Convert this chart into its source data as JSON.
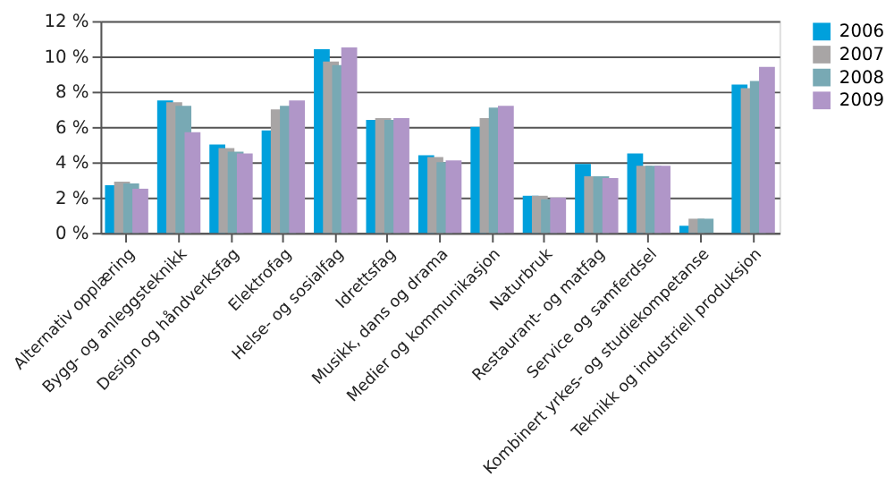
{
  "chart_data": {
    "type": "bar",
    "categories": [
      "Alternativ opplæring",
      "Bygg- og anleggsteknikk",
      "Design og håndverksfag",
      "Elektrofag",
      "Helse- og sosialfag",
      "Idrettsfag",
      "Musikk, dans og drama",
      "Medier og kommunikasjon",
      "Naturbruk",
      "Restaurant- og matfag",
      "Service og samferdsel",
      "Kombinert yrkes- og studiekompetanse",
      "Teknikk og industriell produksjon"
    ],
    "series": [
      {
        "name": "2006",
        "color": "#00a0dc",
        "values": [
          2.7,
          7.5,
          5.0,
          5.8,
          10.4,
          6.4,
          4.4,
          6.0,
          2.1,
          3.9,
          4.5,
          0.4,
          8.4
        ]
      },
      {
        "name": "2007",
        "color": "#a8a5a5",
        "values": [
          2.9,
          7.4,
          4.8,
          7.0,
          9.7,
          6.5,
          4.3,
          6.5,
          2.1,
          3.2,
          3.8,
          0.8,
          8.2
        ]
      },
      {
        "name": "2008",
        "color": "#78a9b4",
        "values": [
          2.8,
          7.2,
          4.6,
          7.2,
          9.5,
          6.4,
          4.0,
          7.1,
          1.9,
          3.2,
          3.8,
          0.8,
          8.6
        ]
      },
      {
        "name": "2009",
        "color": "#b096c8",
        "values": [
          2.5,
          5.7,
          4.5,
          7.5,
          10.5,
          6.5,
          4.1,
          7.2,
          2.0,
          3.1,
          3.8,
          null,
          9.4
        ]
      }
    ],
    "ylim": [
      0,
      12
    ],
    "yticks": [
      {
        "value": 0,
        "label": "0 %"
      },
      {
        "value": 2,
        "label": "2 %"
      },
      {
        "value": 4,
        "label": "4 %"
      },
      {
        "value": 6,
        "label": "6 %"
      },
      {
        "value": 8,
        "label": "8 %"
      },
      {
        "value": 10,
        "label": "10 %"
      },
      {
        "value": 12,
        "label": "12 %"
      }
    ],
    "grid": "y",
    "legend": "right"
  }
}
